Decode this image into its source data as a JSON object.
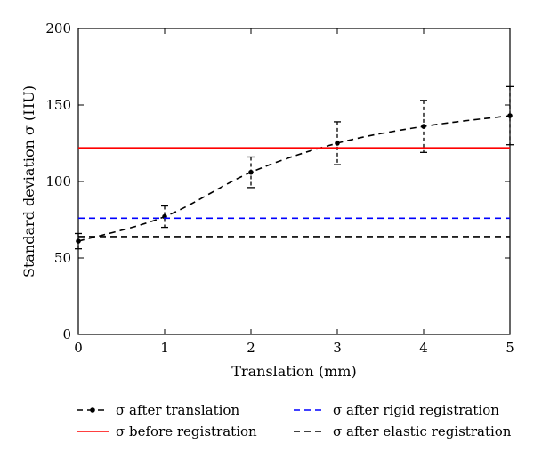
{
  "chart_data": {
    "type": "line",
    "xlabel": "Translation (mm)",
    "ylabel": "Standard deviation σ (HU)",
    "xlim": [
      0,
      5
    ],
    "ylim": [
      0,
      200
    ],
    "xticks": [
      0,
      1,
      2,
      3,
      4,
      5
    ],
    "yticks": [
      0,
      50,
      100,
      150,
      200
    ],
    "grid": false,
    "legend_position": "bottom",
    "series": [
      {
        "name": "σ after translation",
        "style": "dashed-with-markers",
        "color": "#000000",
        "x": [
          0,
          1,
          2,
          3,
          4,
          5
        ],
        "y": [
          61,
          77,
          106,
          125,
          136,
          143
        ],
        "error": [
          5,
          7,
          10,
          14,
          17,
          19
        ]
      },
      {
        "name": "σ after rigid registration",
        "style": "dashed",
        "color": "#0000ff",
        "x": [
          0,
          5
        ],
        "y": [
          76,
          76
        ]
      },
      {
        "name": "σ before registration",
        "style": "solid",
        "color": "#ff0000",
        "x": [
          0,
          5
        ],
        "y": [
          122,
          122
        ]
      },
      {
        "name": "σ after elastic registration",
        "style": "dashed",
        "color": "#000000",
        "x": [
          0,
          5
        ],
        "y": [
          64,
          64
        ]
      }
    ]
  }
}
